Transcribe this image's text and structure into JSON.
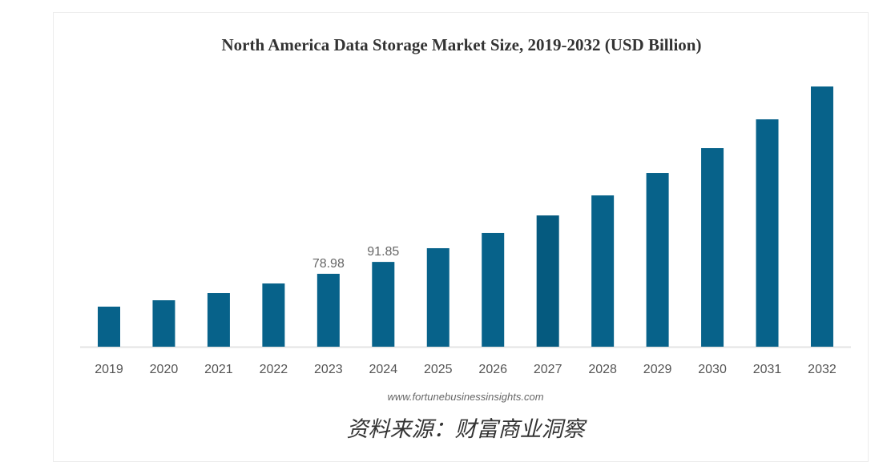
{
  "chart_data": {
    "type": "bar",
    "title": "North America Data Storage Market Size, 2019-2032 (USD Billion)",
    "xlabel": "",
    "ylabel": "",
    "categories": [
      "2019",
      "2020",
      "2021",
      "2022",
      "2023",
      "2024",
      "2025",
      "2026",
      "2027",
      "2028",
      "2029",
      "2030",
      "2031",
      "2032"
    ],
    "values": [
      43.4,
      50.3,
      58.1,
      68.5,
      78.98,
      91.85,
      106.7,
      123.2,
      142.2,
      163.9,
      188.2,
      215.1,
      246.3,
      281.9
    ],
    "data_labels": {
      "2023": "78.98",
      "2024": "91.85"
    },
    "ylim": [
      0,
      290
    ],
    "grid": false,
    "bar_color": "#07628a",
    "highlight_color": "#055a7f",
    "source_url": "www.fortunebusinessinsights.com",
    "caption": "资料来源：财富商业洞察"
  }
}
